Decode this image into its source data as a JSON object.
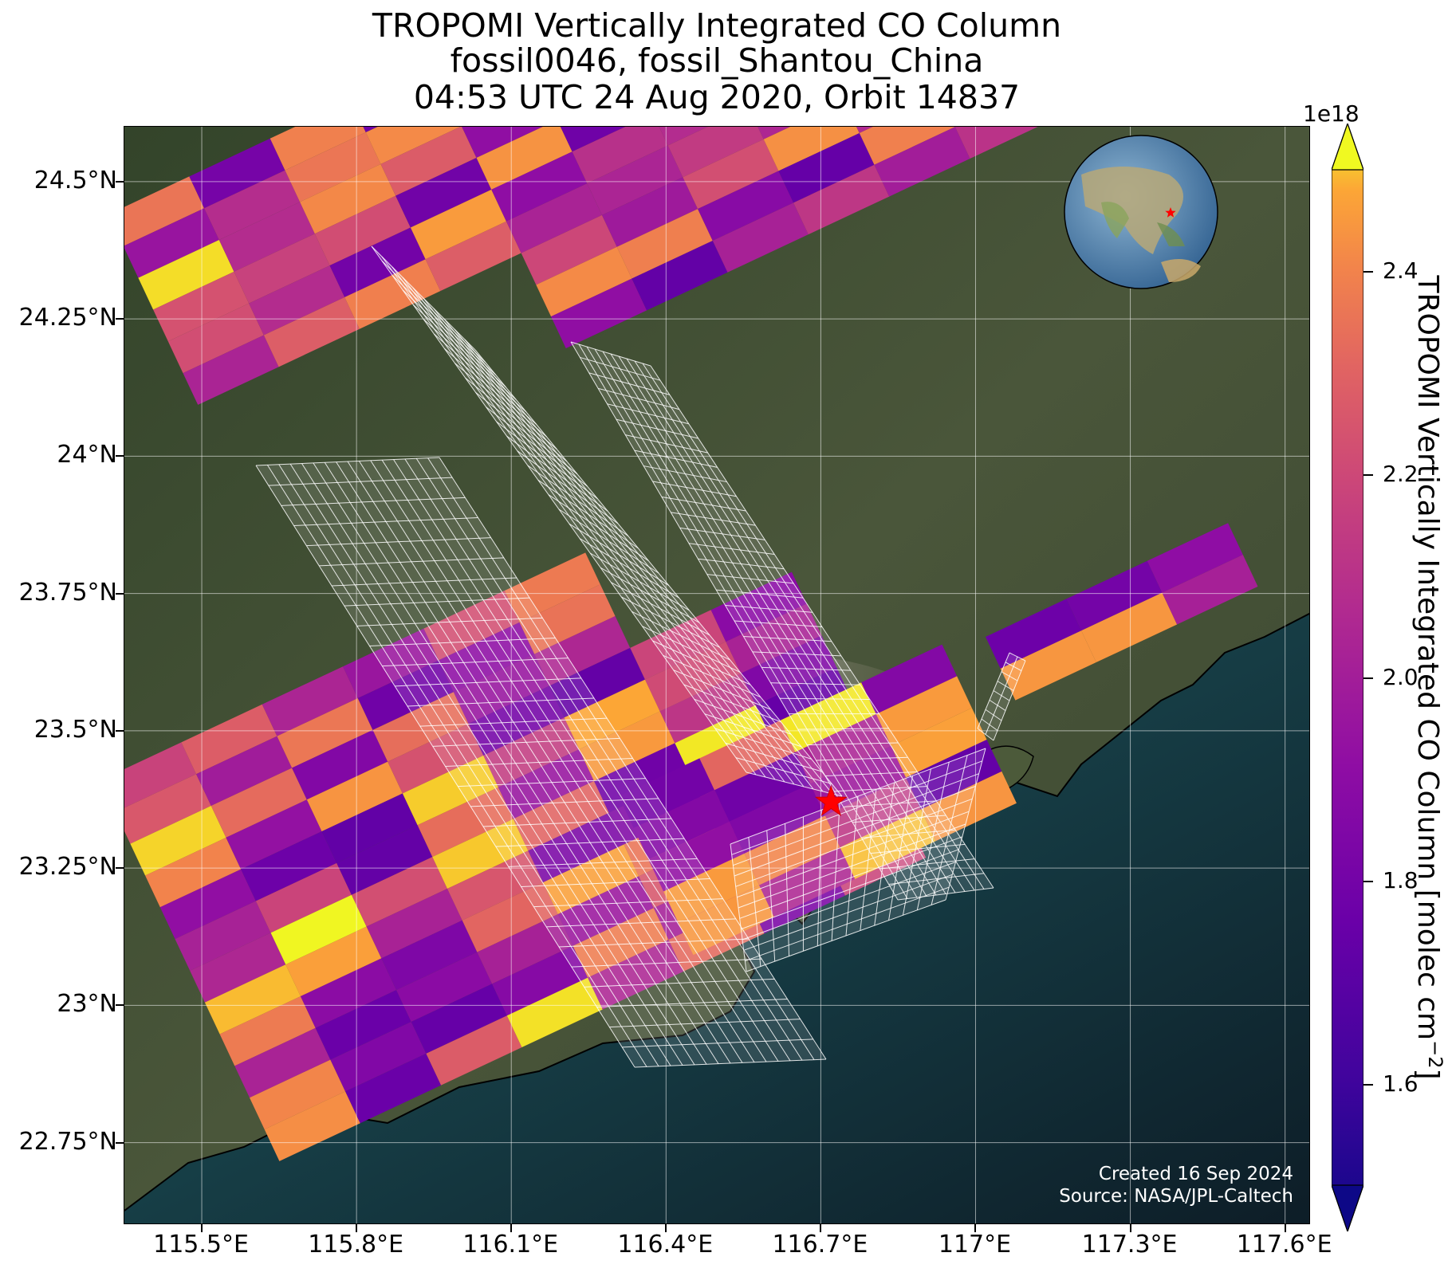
{
  "title": {
    "line1": "TROPOMI Vertically Integrated CO Column",
    "line2": "fossil0046, fossil_Shantou_China",
    "line3": "04:53 UTC 24 Aug 2020, Orbit 14837"
  },
  "map": {
    "lon_range": [
      115.35,
      117.65
    ],
    "lat_range": [
      22.6,
      24.6
    ],
    "lon_ticks": [
      "115.5°E",
      "115.8°E",
      "116.1°E",
      "116.4°E",
      "116.7°E",
      "117°E",
      "117.3°E",
      "117.6°E"
    ],
    "lat_ticks": [
      "24.5°N",
      "24.25°N",
      "24°N",
      "23.75°N",
      "23.5°N",
      "23.25°N",
      "23°N",
      "22.75°N"
    ],
    "site_marker": {
      "lon": 116.72,
      "lat": 23.37,
      "color": "#ff0000"
    },
    "credit_line1": "Created 16 Sep 2024",
    "credit_line2": "Source: NASA/JPL-Caltech"
  },
  "colorbar": {
    "label": "TROPOMI Vertically Integrated CO Column [molec cm",
    "label_exp": "−2",
    "label_end": "]",
    "exponent": "1e18",
    "ticks": [
      "1.6",
      "1.8",
      "2.0",
      "2.2",
      "2.4"
    ],
    "range": [
      1.5,
      2.5
    ],
    "colormap": "plasma"
  },
  "colors": {
    "land": "#3d4a2e",
    "sea": "#163238",
    "deep_sea": "#0e1f28",
    "grid": "#ffffff",
    "target_grid": "#ffffff"
  }
}
